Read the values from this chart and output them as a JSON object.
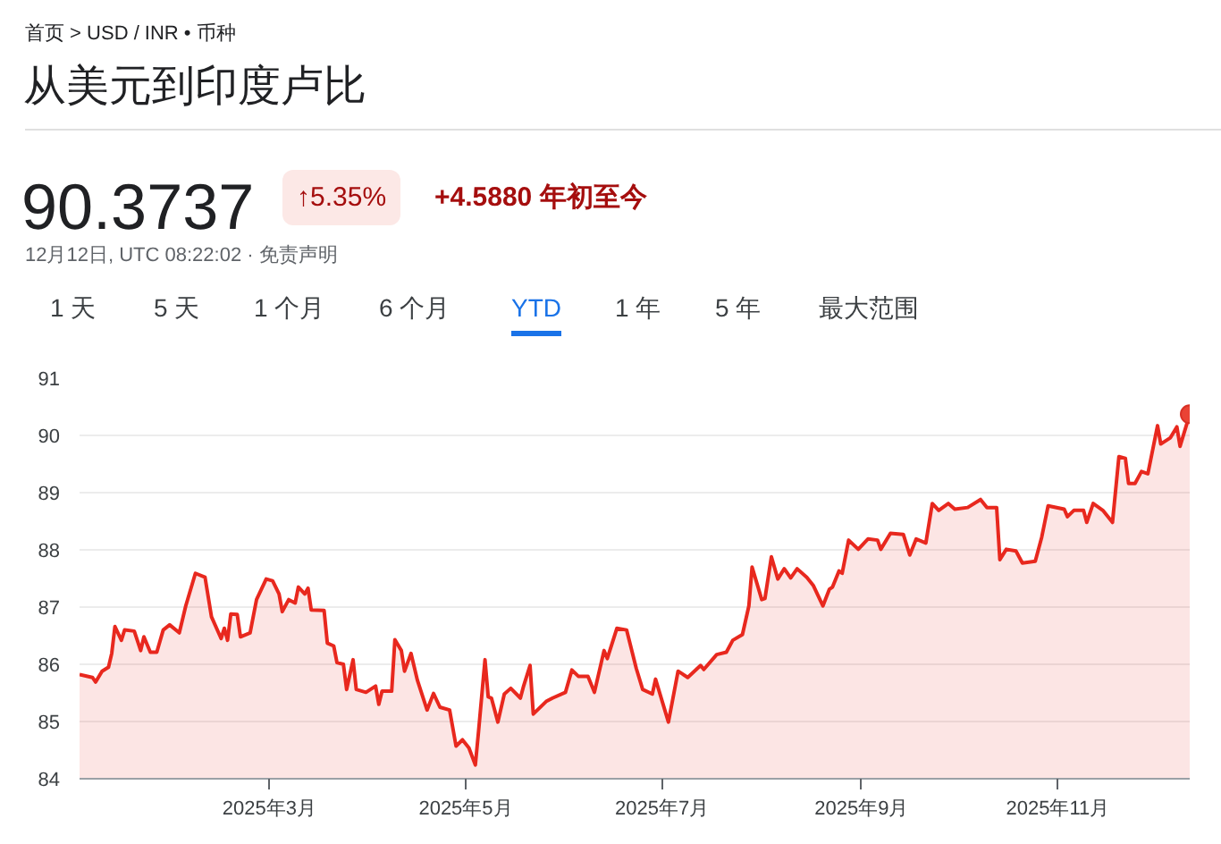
{
  "chart_data": {
    "type": "area",
    "title": "从美元到印度卢比",
    "annotations": [
      "首页 > USD / INR • 币种",
      "90.3737",
      "↑5.35%",
      "+4.5880 年初至今",
      "12月12日, UTC 08:22:02 · 免责声明",
      "1 天",
      "5 天",
      "1 个月",
      "6 个月",
      "YTD",
      "1 年",
      "5 年",
      "最大范围"
    ],
    "xlim": [
      "2025-01-01",
      "2025-12-12"
    ],
    "xticks": [
      {
        "value": "2025-03-01",
        "label": "2025年3月"
      },
      {
        "value": "2025-05-01",
        "label": "2025年5月"
      },
      {
        "value": "2025-07-01",
        "label": "2025年7月"
      },
      {
        "value": "2025-09-01",
        "label": "2025年9月"
      },
      {
        "value": "2025-11-01",
        "label": "2025年11月"
      }
    ],
    "ylim": [
      84,
      91
    ],
    "yticks": [
      84,
      85,
      86,
      87,
      88,
      89,
      90,
      91
    ],
    "grid": "y",
    "series": [
      {
        "color": "#e8281e",
        "x": [
          "2025-01-01",
          "2025-01-05",
          "2025-01-06",
          "2025-01-08",
          "2025-01-10",
          "2025-01-11",
          "2025-01-12",
          "2025-01-14",
          "2025-01-15",
          "2025-01-18",
          "2025-01-20",
          "2025-01-21",
          "2025-01-23",
          "2025-01-25",
          "2025-01-27",
          "2025-01-29",
          "2025-02-01",
          "2025-02-03",
          "2025-02-06",
          "2025-02-09",
          "2025-02-11",
          "2025-02-14",
          "2025-02-15",
          "2025-02-16",
          "2025-02-17",
          "2025-02-19",
          "2025-02-20",
          "2025-02-23",
          "2025-02-25",
          "2025-02-28",
          "2025-03-02",
          "2025-03-04",
          "2025-03-05",
          "2025-03-07",
          "2025-03-09",
          "2025-03-10",
          "2025-03-12",
          "2025-03-13",
          "2025-03-14",
          "2025-03-18",
          "2025-03-19",
          "2025-03-21",
          "2025-03-22",
          "2025-03-24",
          "2025-03-25",
          "2025-03-27",
          "2025-03-28",
          "2025-03-31",
          "2025-04-03",
          "2025-04-04",
          "2025-04-05",
          "2025-04-08",
          "2025-04-09",
          "2025-04-11",
          "2025-04-12",
          "2025-04-14",
          "2025-04-16",
          "2025-04-19",
          "2025-04-21",
          "2025-04-23",
          "2025-04-26",
          "2025-04-28",
          "2025-04-30",
          "2025-05-02",
          "2025-05-04",
          "2025-05-05",
          "2025-05-07",
          "2025-05-08",
          "2025-05-09",
          "2025-05-11",
          "2025-05-13",
          "2025-05-15",
          "2025-05-18",
          "2025-05-19",
          "2025-05-21",
          "2025-05-22",
          "2025-05-26",
          "2025-05-28",
          "2025-06-01",
          "2025-06-03",
          "2025-06-05",
          "2025-06-08",
          "2025-06-10",
          "2025-06-13",
          "2025-06-14",
          "2025-06-17",
          "2025-06-20",
          "2025-06-23",
          "2025-06-25",
          "2025-06-28",
          "2025-06-29",
          "2025-07-03",
          "2025-07-06",
          "2025-07-09",
          "2025-07-13",
          "2025-07-14",
          "2025-07-18",
          "2025-07-21",
          "2025-07-23",
          "2025-07-26",
          "2025-07-28",
          "2025-07-29",
          "2025-08-01",
          "2025-08-02",
          "2025-08-04",
          "2025-08-06",
          "2025-08-08",
          "2025-08-10",
          "2025-08-12",
          "2025-08-15",
          "2025-08-17",
          "2025-08-20",
          "2025-08-22",
          "2025-08-23",
          "2025-08-25",
          "2025-08-26",
          "2025-08-28",
          "2025-08-31",
          "2025-09-03",
          "2025-09-06",
          "2025-09-07",
          "2025-09-10",
          "2025-09-14",
          "2025-09-16",
          "2025-09-18",
          "2025-09-21",
          "2025-09-23",
          "2025-09-25",
          "2025-09-28",
          "2025-09-30",
          "2025-10-04",
          "2025-10-08",
          "2025-10-10",
          "2025-10-13",
          "2025-10-14",
          "2025-10-16",
          "2025-10-19",
          "2025-10-21",
          "2025-10-25",
          "2025-10-27",
          "2025-10-29",
          "2025-11-03",
          "2025-11-04",
          "2025-11-06",
          "2025-11-09",
          "2025-11-10",
          "2025-11-12",
          "2025-11-15",
          "2025-11-18",
          "2025-11-20",
          "2025-11-22",
          "2025-11-23",
          "2025-11-25",
          "2025-11-27",
          "2025-11-29",
          "2025-12-02",
          "2025-12-03",
          "2025-12-06",
          "2025-12-08",
          "2025-12-09",
          "2025-12-12"
        ],
        "values": [
          85.82,
          85.77,
          85.69,
          85.88,
          85.95,
          86.19,
          86.66,
          86.42,
          86.6,
          86.58,
          86.24,
          86.48,
          86.21,
          86.21,
          86.6,
          86.69,
          86.55,
          87.02,
          87.59,
          87.52,
          86.83,
          86.45,
          86.63,
          86.42,
          86.88,
          86.87,
          86.48,
          86.55,
          87.13,
          87.49,
          87.46,
          87.23,
          86.92,
          87.13,
          87.07,
          87.35,
          87.23,
          87.33,
          86.95,
          86.94,
          86.37,
          86.32,
          86.03,
          86.0,
          85.56,
          86.08,
          85.56,
          85.51,
          85.62,
          85.3,
          85.53,
          85.53,
          86.43,
          86.24,
          85.88,
          86.19,
          85.72,
          85.2,
          85.49,
          85.25,
          85.2,
          84.57,
          84.68,
          84.54,
          84.24,
          84.83,
          86.08,
          85.43,
          85.41,
          84.99,
          85.48,
          85.58,
          85.41,
          85.62,
          85.98,
          85.13,
          85.35,
          85.41,
          85.51,
          85.9,
          85.79,
          85.79,
          85.51,
          86.24,
          86.1,
          86.63,
          86.6,
          85.93,
          85.56,
          85.48,
          85.74,
          84.99,
          85.88,
          85.77,
          85.98,
          85.91,
          86.17,
          86.21,
          86.42,
          86.52,
          87.02,
          87.7,
          87.13,
          87.15,
          87.88,
          87.49,
          87.67,
          87.51,
          87.67,
          87.52,
          87.38,
          87.02,
          87.31,
          87.35,
          87.63,
          87.59,
          88.17,
          88.01,
          88.19,
          88.17,
          88.01,
          88.29,
          88.27,
          87.91,
          88.19,
          88.12,
          88.81,
          88.69,
          88.81,
          88.71,
          88.74,
          88.88,
          88.74,
          88.74,
          87.83,
          88.01,
          87.98,
          87.77,
          87.8,
          88.22,
          88.77,
          88.71,
          88.58,
          88.69,
          88.69,
          88.48,
          88.81,
          88.69,
          88.48,
          89.63,
          89.6,
          89.16,
          89.16,
          89.37,
          89.33,
          90.17,
          89.85,
          89.96,
          90.15,
          89.81,
          90.37
        ]
      },
      {
        "type": "scatter",
        "color": "#ea4335",
        "marker": "circle",
        "x": [
          "2025-12-12"
        ],
        "values": [
          90.37
        ]
      }
    ]
  }
}
